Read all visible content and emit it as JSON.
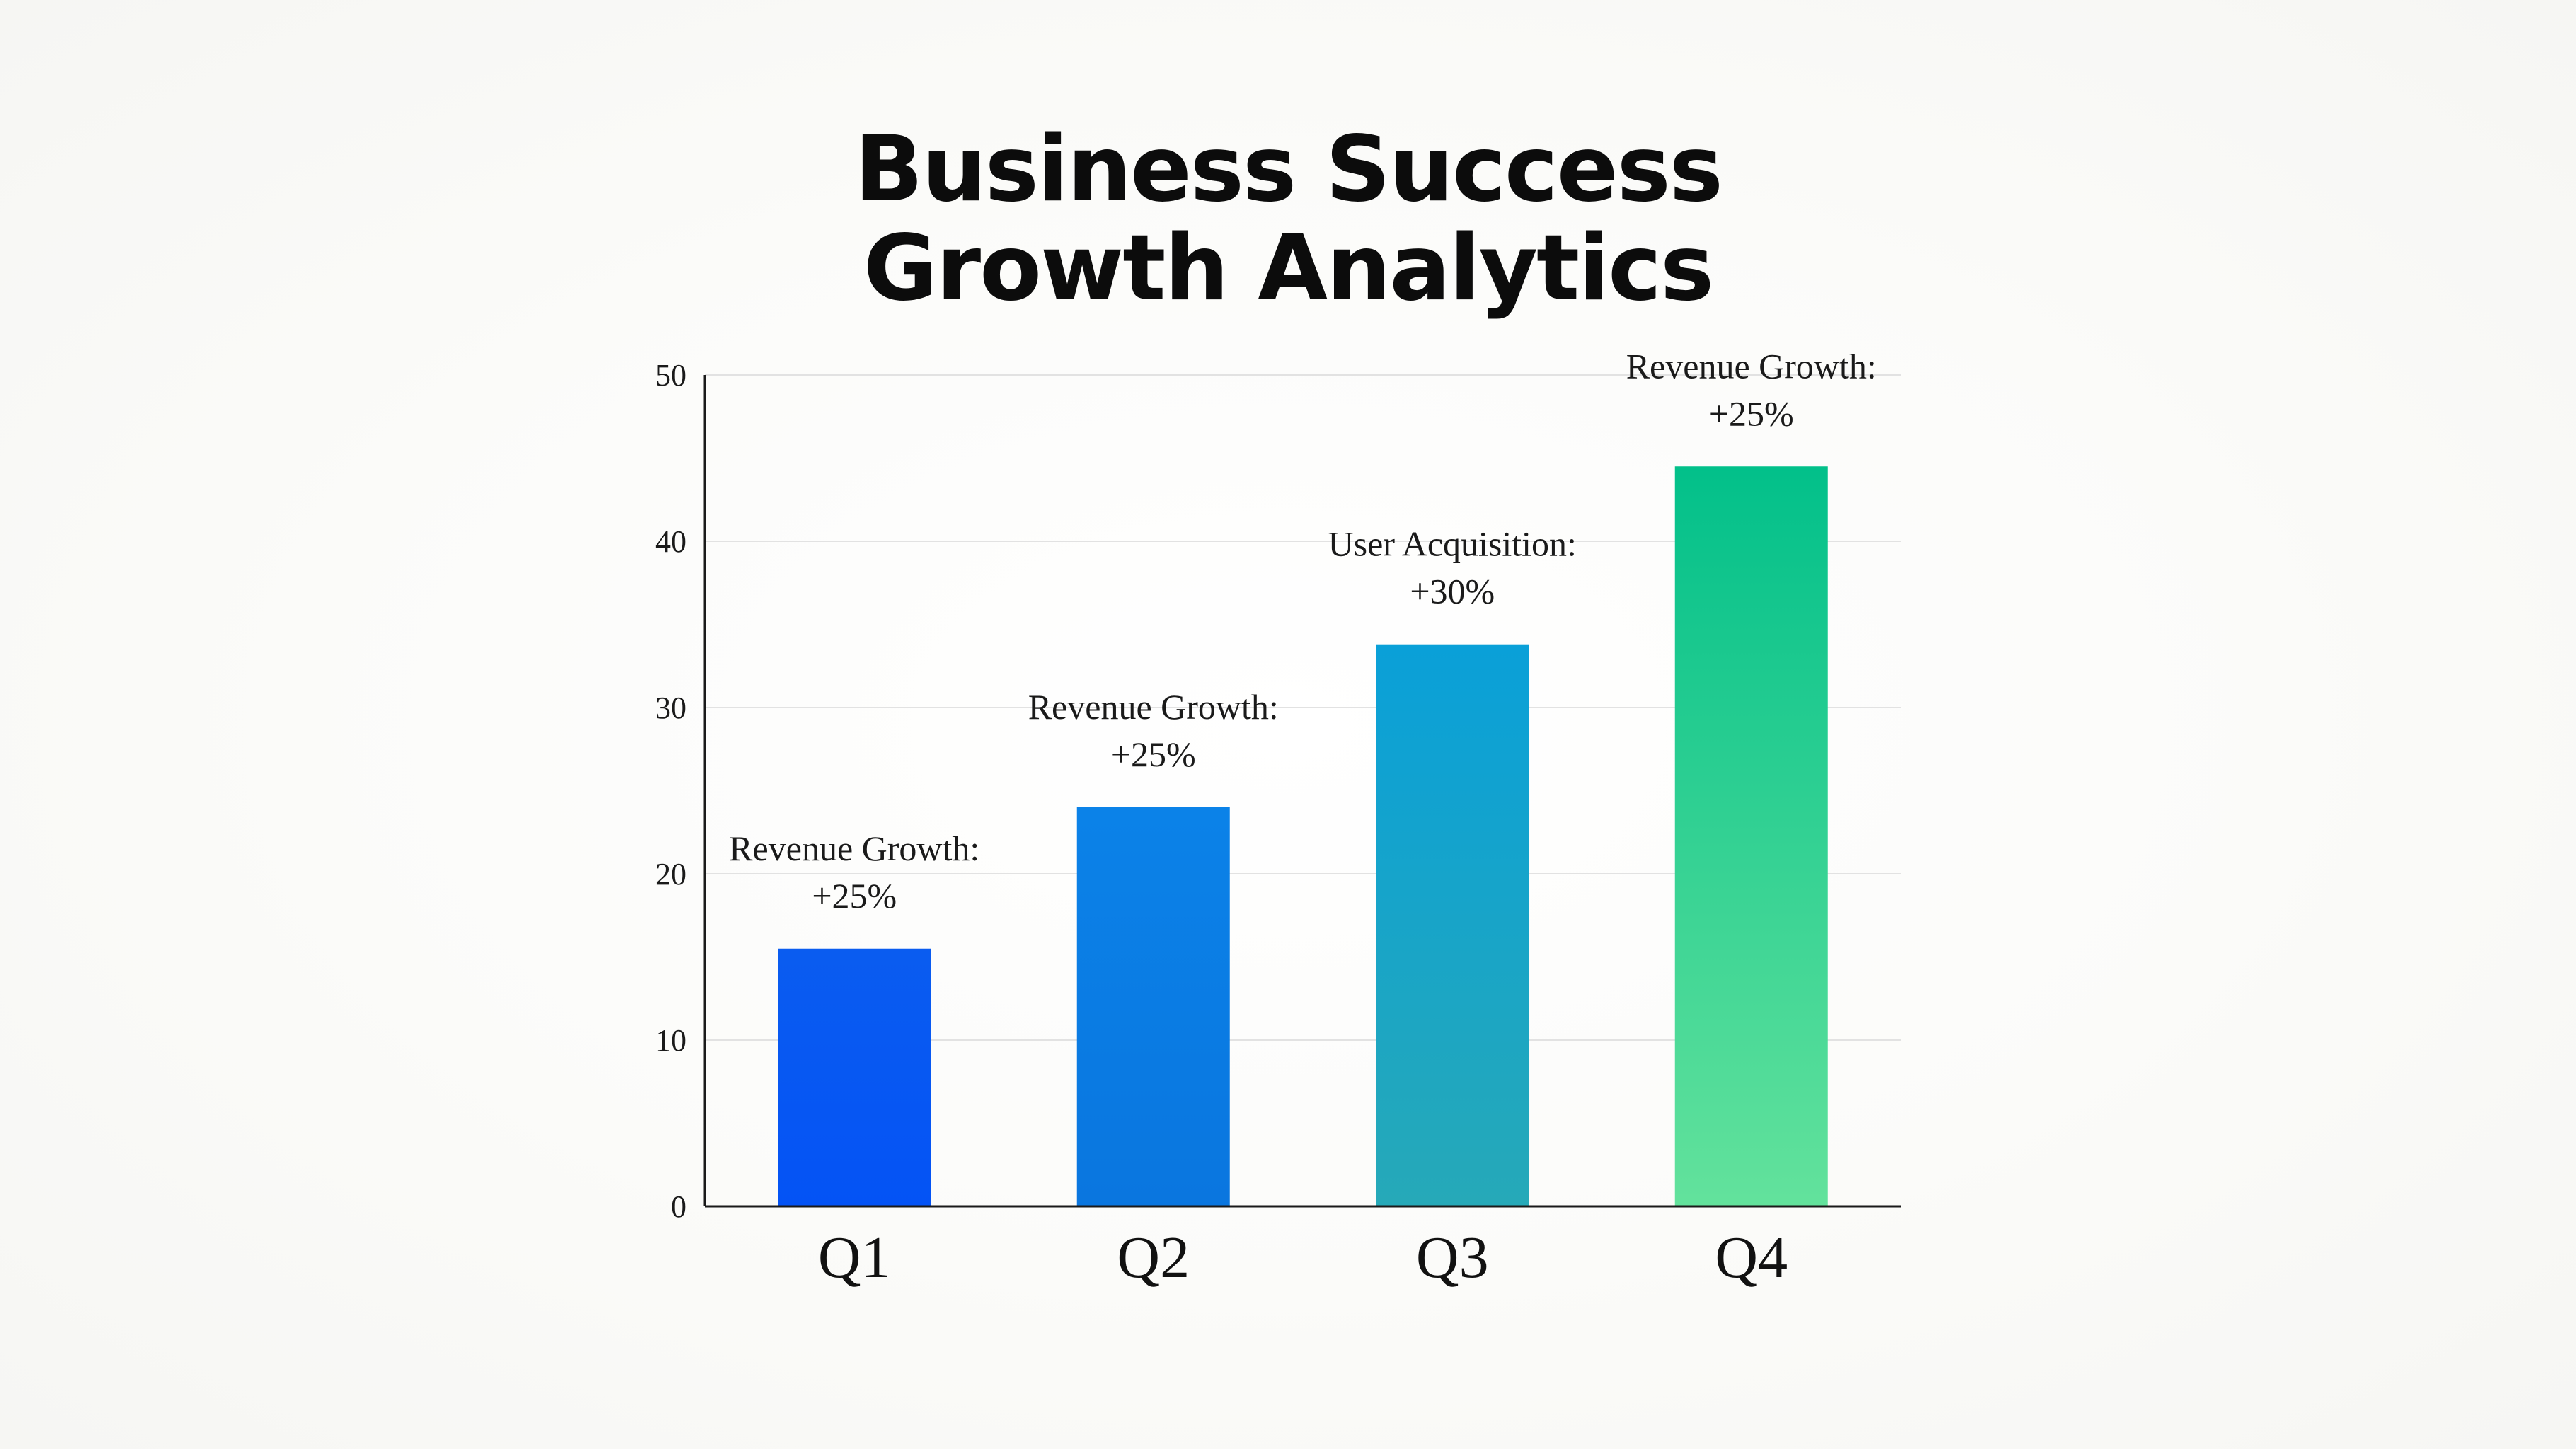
{
  "chart_data": {
    "type": "bar",
    "title": "Business Success Growth Analytics",
    "title_lines": [
      "Business Success",
      "Growth Analytics"
    ],
    "xlabel": "",
    "ylabel": "",
    "categories": [
      "Q1",
      "Q2",
      "Q3",
      "Q4"
    ],
    "values": [
      15.5,
      24,
      33.8,
      44.5
    ],
    "annotations": [
      [
        "Revenue Growth:",
        "+25%"
      ],
      [
        "Revenue Growth:",
        "+25%"
      ],
      [
        "User Acquisition:",
        "+30%"
      ],
      [
        "Revenue Growth:",
        "+25%"
      ]
    ],
    "ylim": [
      0,
      50
    ],
    "yticks": [
      0,
      10,
      20,
      30,
      40,
      50
    ],
    "grid": true,
    "legend": "none",
    "colors": {
      "bar_gradients": [
        [
          "#0a5cf0",
          "#0453f5"
        ],
        [
          "#0b82e8",
          "#0a76df"
        ],
        [
          "#0aa0d8",
          "#26a9b8"
        ],
        [
          "#02c08a",
          "#63e29c"
        ]
      ],
      "axis": "#1a1a1a",
      "grid": "#e2e2e2",
      "title": "#0c0c0c"
    }
  }
}
